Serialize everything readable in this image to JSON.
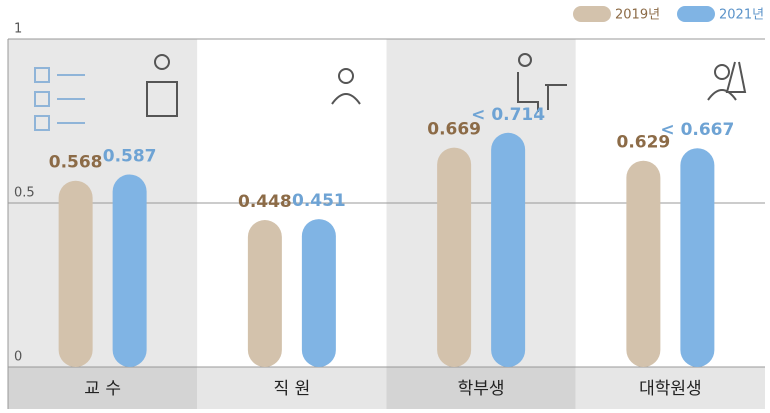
{
  "chart_data": {
    "type": "bar",
    "categories": [
      "교  수",
      "직  원",
      "학부생",
      "대학원생"
    ],
    "series": [
      {
        "name": "2019년",
        "color": "#d3c2ac",
        "label_color": "#8c6b47",
        "values": [
          0.568,
          0.448,
          0.669,
          0.629
        ]
      },
      {
        "name": "2021년",
        "color": "#80b4e4",
        "label_color": "#6ea3d4",
        "values": [
          0.587,
          0.451,
          0.714,
          0.667
        ],
        "value_labels": [
          "0.587",
          "0.451",
          "< 0.714",
          "< 0.667"
        ]
      }
    ],
    "ylim": [
      0,
      1
    ],
    "yticks": [
      0,
      0.5,
      1
    ],
    "grid": true
  }
}
